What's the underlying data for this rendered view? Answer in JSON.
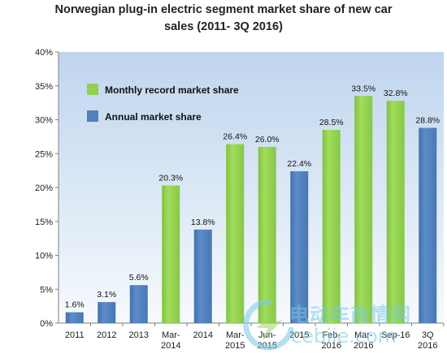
{
  "chart_data": {
    "type": "bar",
    "title": [
      "Norwegian plug-in electric segment market share of new car",
      "sales  (2011- 3Q 2016)"
    ],
    "categories": [
      [
        "2011"
      ],
      [
        "2012"
      ],
      [
        "2013"
      ],
      [
        "Mar-",
        "2014"
      ],
      [
        "2014"
      ],
      [
        "Mar-",
        "2015"
      ],
      [
        "Jun-",
        "2015"
      ],
      [
        "2015"
      ],
      [
        "Feb-",
        "2016"
      ],
      [
        "Mar-",
        "2016"
      ],
      [
        "Sep-16"
      ],
      [
        "3Q",
        "2016"
      ]
    ],
    "values": [
      1.6,
      3.1,
      5.6,
      20.3,
      13.8,
      26.4,
      26.0,
      22.4,
      28.5,
      33.5,
      32.8,
      28.8
    ],
    "value_labels": [
      "1.6%",
      "3.1%",
      "5.6%",
      "20.3%",
      "13.8%",
      "26.4%",
      "26.0%",
      "22.4%",
      "28.5%",
      "33.5%",
      "32.8%",
      "28.8%"
    ],
    "series_membership": [
      "annual",
      "annual",
      "annual",
      "monthly",
      "annual",
      "monthly",
      "monthly",
      "annual",
      "monthly",
      "monthly",
      "monthly",
      "annual"
    ],
    "legend": [
      {
        "key": "monthly",
        "label": "Monthly record market share",
        "color": "#92d050"
      },
      {
        "key": "annual",
        "label": "Annual market share",
        "color": "#4f81bd"
      }
    ],
    "ylim": [
      0,
      40
    ],
    "yticks": [
      0,
      5,
      10,
      15,
      20,
      25,
      30,
      35,
      40
    ],
    "ytick_labels": [
      "0%",
      "5%",
      "10%",
      "15%",
      "20%",
      "25%",
      "30%",
      "35%",
      "40%"
    ],
    "xlabel": "",
    "ylabel": "",
    "grid": false,
    "legend_position": "top-left"
  },
  "watermark": {
    "cn": "电动车商情网",
    "en": "cebiie.com"
  }
}
